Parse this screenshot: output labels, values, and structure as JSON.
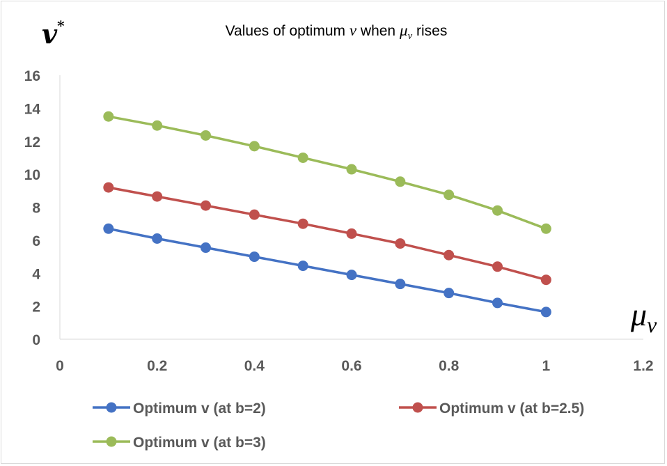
{
  "chart_data": {
    "type": "line",
    "title": {
      "prefix": "Values of optimum ",
      "var": "v",
      "middle": " when ",
      "mu": "μ",
      "mu_sub": "v",
      "suffix": " rises"
    },
    "ylabel": {
      "main": "v",
      "sup": "*"
    },
    "xlabel": {
      "main": "μ",
      "sub": "v"
    },
    "xlim": [
      0,
      1.2
    ],
    "ylim": [
      0,
      16
    ],
    "xticks": [
      "0",
      "0.2",
      "0.4",
      "0.6",
      "0.8",
      "1",
      "1.2"
    ],
    "yticks": [
      "0",
      "2",
      "4",
      "6",
      "8",
      "10",
      "12",
      "14",
      "16"
    ],
    "grid": false,
    "legend_position": "bottom",
    "x": [
      0.1,
      0.2,
      0.3,
      0.4,
      0.5,
      0.6,
      0.7,
      0.8,
      0.9,
      1.0
    ],
    "series": [
      {
        "name": "Optimum v (at b=2)",
        "color": "#4472c4",
        "values": [
          6.7,
          6.1,
          5.55,
          5.0,
          4.45,
          3.9,
          3.35,
          2.8,
          2.2,
          1.65
        ]
      },
      {
        "name": "Optimum v (at b=2.5)",
        "color": "#c0504d",
        "values": [
          9.2,
          8.65,
          8.1,
          7.55,
          7.0,
          6.4,
          5.8,
          5.1,
          4.4,
          3.6
        ]
      },
      {
        "name": "Optimum v (at b=3)",
        "color": "#9bbb59",
        "values": [
          13.5,
          12.95,
          12.35,
          11.7,
          11.0,
          10.3,
          9.55,
          8.75,
          7.8,
          6.7
        ]
      }
    ]
  }
}
